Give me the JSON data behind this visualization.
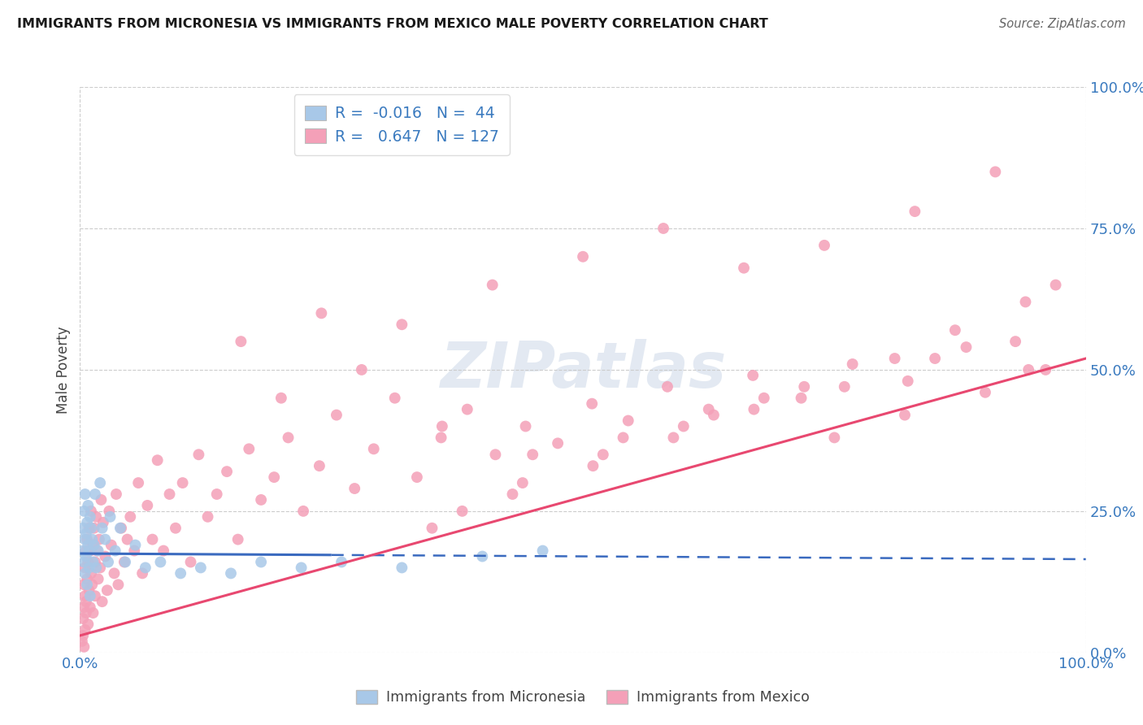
{
  "title": "IMMIGRANTS FROM MICRONESIA VS IMMIGRANTS FROM MEXICO MALE POVERTY CORRELATION CHART",
  "source": "Source: ZipAtlas.com",
  "ylabel": "Male Poverty",
  "legend_label1": "Immigrants from Micronesia",
  "legend_label2": "Immigrants from Mexico",
  "R1": "-0.016",
  "N1": "44",
  "R2": "0.647",
  "N2": "127",
  "color_micronesia": "#a8c8e8",
  "color_mexico": "#f4a0b8",
  "line_color_micronesia": "#3a6abf",
  "line_color_mexico": "#e84870",
  "background_color": "#ffffff",
  "mic_x": [
    0.003,
    0.003,
    0.004,
    0.004,
    0.005,
    0.005,
    0.005,
    0.006,
    0.006,
    0.007,
    0.007,
    0.008,
    0.008,
    0.009,
    0.009,
    0.01,
    0.01,
    0.011,
    0.012,
    0.013,
    0.014,
    0.015,
    0.016,
    0.018,
    0.02,
    0.022,
    0.025,
    0.028,
    0.03,
    0.035,
    0.04,
    0.045,
    0.055,
    0.065,
    0.08,
    0.1,
    0.12,
    0.15,
    0.18,
    0.22,
    0.26,
    0.32,
    0.4,
    0.46
  ],
  "mic_y": [
    0.18,
    0.22,
    0.16,
    0.25,
    0.2,
    0.14,
    0.28,
    0.17,
    0.21,
    0.23,
    0.12,
    0.19,
    0.26,
    0.15,
    0.18,
    0.24,
    0.1,
    0.22,
    0.2,
    0.16,
    0.19,
    0.28,
    0.15,
    0.18,
    0.3,
    0.22,
    0.2,
    0.16,
    0.24,
    0.18,
    0.22,
    0.16,
    0.19,
    0.15,
    0.16,
    0.14,
    0.15,
    0.14,
    0.16,
    0.15,
    0.16,
    0.15,
    0.17,
    0.18
  ],
  "mex_x": [
    0.002,
    0.003,
    0.003,
    0.004,
    0.004,
    0.004,
    0.005,
    0.005,
    0.005,
    0.006,
    0.006,
    0.006,
    0.007,
    0.007,
    0.008,
    0.008,
    0.009,
    0.009,
    0.01,
    0.01,
    0.011,
    0.011,
    0.012,
    0.013,
    0.013,
    0.014,
    0.015,
    0.015,
    0.016,
    0.017,
    0.018,
    0.019,
    0.02,
    0.021,
    0.022,
    0.023,
    0.025,
    0.027,
    0.029,
    0.031,
    0.034,
    0.036,
    0.038,
    0.041,
    0.044,
    0.047,
    0.05,
    0.054,
    0.058,
    0.062,
    0.067,
    0.072,
    0.077,
    0.083,
    0.089,
    0.095,
    0.102,
    0.11,
    0.118,
    0.127,
    0.136,
    0.146,
    0.157,
    0.168,
    0.18,
    0.193,
    0.207,
    0.222,
    0.238,
    0.255,
    0.273,
    0.292,
    0.313,
    0.335,
    0.359,
    0.385,
    0.413,
    0.443,
    0.475,
    0.509,
    0.545,
    0.584,
    0.625,
    0.669,
    0.717,
    0.768,
    0.823,
    0.881,
    0.943,
    0.44,
    0.52,
    0.38,
    0.6,
    0.68,
    0.75,
    0.82,
    0.9,
    0.96,
    0.35,
    0.43,
    0.51,
    0.59,
    0.67,
    0.76,
    0.85,
    0.93,
    0.2,
    0.28,
    0.36,
    0.45,
    0.54,
    0.63,
    0.72,
    0.81,
    0.87,
    0.94,
    0.16,
    0.24,
    0.32,
    0.41,
    0.5,
    0.58,
    0.66,
    0.74,
    0.83,
    0.91,
    0.97
  ],
  "mex_y": [
    0.02,
    0.06,
    0.03,
    0.08,
    0.12,
    0.01,
    0.1,
    0.15,
    0.04,
    0.09,
    0.18,
    0.07,
    0.13,
    0.2,
    0.05,
    0.16,
    0.11,
    0.22,
    0.08,
    0.18,
    0.14,
    0.25,
    0.12,
    0.19,
    0.07,
    0.22,
    0.16,
    0.1,
    0.24,
    0.18,
    0.13,
    0.2,
    0.15,
    0.27,
    0.09,
    0.23,
    0.17,
    0.11,
    0.25,
    0.19,
    0.14,
    0.28,
    0.12,
    0.22,
    0.16,
    0.2,
    0.24,
    0.18,
    0.3,
    0.14,
    0.26,
    0.2,
    0.34,
    0.18,
    0.28,
    0.22,
    0.3,
    0.16,
    0.35,
    0.24,
    0.28,
    0.32,
    0.2,
    0.36,
    0.27,
    0.31,
    0.38,
    0.25,
    0.33,
    0.42,
    0.29,
    0.36,
    0.45,
    0.31,
    0.38,
    0.43,
    0.35,
    0.4,
    0.37,
    0.44,
    0.41,
    0.47,
    0.43,
    0.49,
    0.45,
    0.51,
    0.48,
    0.54,
    0.5,
    0.3,
    0.35,
    0.25,
    0.4,
    0.45,
    0.38,
    0.42,
    0.46,
    0.5,
    0.22,
    0.28,
    0.33,
    0.38,
    0.43,
    0.47,
    0.52,
    0.55,
    0.45,
    0.5,
    0.4,
    0.35,
    0.38,
    0.42,
    0.47,
    0.52,
    0.57,
    0.62,
    0.55,
    0.6,
    0.58,
    0.65,
    0.7,
    0.75,
    0.68,
    0.72,
    0.78,
    0.85,
    0.65
  ],
  "xlim": [
    0.0,
    1.0
  ],
  "ylim": [
    0.0,
    1.0
  ],
  "xticks": [
    0.0,
    1.0
  ],
  "yticks": [
    0.0,
    0.25,
    0.5,
    0.75,
    1.0
  ],
  "mic_line_solid_end": 0.25,
  "mex_line_intercept": 0.03,
  "mex_line_slope": 0.49,
  "mic_line_intercept": 0.175,
  "mic_line_slope": -0.01
}
